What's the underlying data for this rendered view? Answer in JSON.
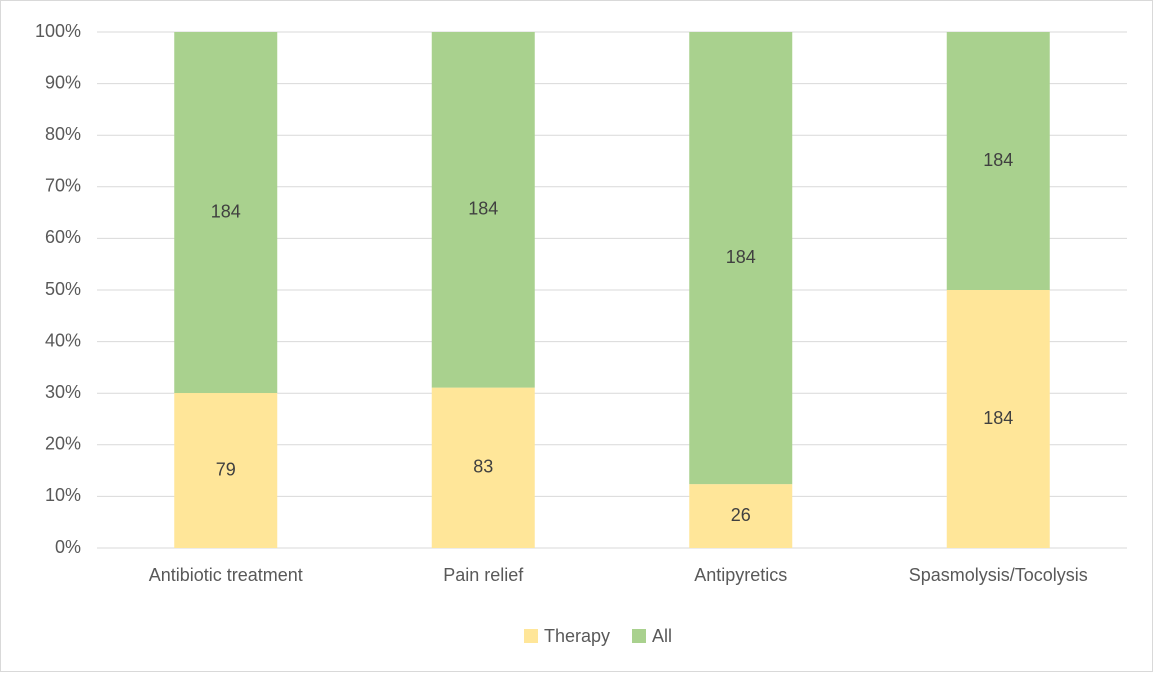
{
  "chart_data": {
    "type": "bar",
    "stacking": "percent",
    "categories": [
      "Antibiotic treatment",
      "Pain relief",
      "Antipyretics",
      "Spasmolysis/Tocolysis"
    ],
    "series": [
      {
        "name": "Therapy",
        "color": "#ffe699",
        "values": [
          79,
          83,
          26,
          184
        ]
      },
      {
        "name": "All",
        "color": "#a9d18e",
        "values": [
          184,
          184,
          184,
          184
        ]
      }
    ],
    "ylim": [
      0,
      100
    ],
    "yticks": [
      {
        "value": 0,
        "label": "0%"
      },
      {
        "value": 10,
        "label": "10%"
      },
      {
        "value": 20,
        "label": "20%"
      },
      {
        "value": 30,
        "label": "30%"
      },
      {
        "value": 40,
        "label": "40%"
      },
      {
        "value": 50,
        "label": "50%"
      },
      {
        "value": 60,
        "label": "60%"
      },
      {
        "value": 70,
        "label": "70%"
      },
      {
        "value": 80,
        "label": "80%"
      },
      {
        "value": 90,
        "label": "90%"
      },
      {
        "value": 100,
        "label": "100%"
      }
    ],
    "grid": true,
    "legend": "bottom"
  }
}
